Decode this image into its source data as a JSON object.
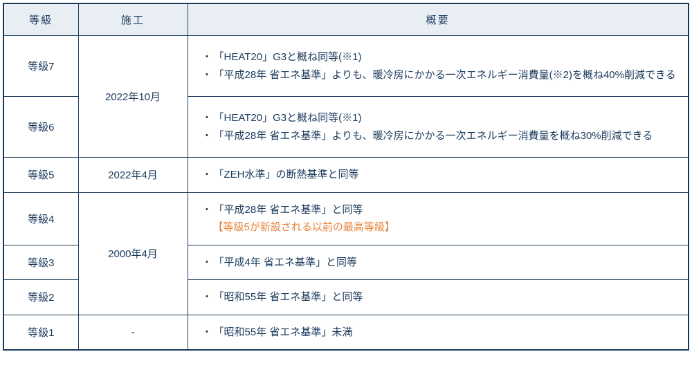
{
  "table": {
    "headers": {
      "grade": "等級",
      "construction": "施工",
      "summary": "概要"
    },
    "border_color": "#1a3a5c",
    "text_color": "#1a3a5c",
    "header_bg": "#e8eef4",
    "note_color": "#e8833a",
    "rows": {
      "r7": {
        "grade": "等級7",
        "bullets": [
          "「HEAT20」G3と概ね同等(※1)",
          "「平成28年 省エネ基準」よりも、暖冷房にかかる一次エネルギー消費量(※2)を概ね40%削減できる"
        ]
      },
      "r6": {
        "grade": "等級6",
        "bullets": [
          "「HEAT20」G3と概ね同等(※1)",
          "「平成28年 省エネ基準」よりも、暖冷房にかかる一次エネルギー消費量を概ね30%削減できる"
        ]
      },
      "r5": {
        "grade": "等級5",
        "date": "2022年4月",
        "bullets": [
          "「ZEH水準」の断熱基準と同等"
        ]
      },
      "r4": {
        "grade": "等級4",
        "bullets": [
          "「平成28年 省エネ基準」と同等"
        ],
        "note": "【等級5が新設される以前の最高等級】"
      },
      "r3": {
        "grade": "等級3",
        "bullets": [
          "「平成4年 省エネ基準」と同等"
        ]
      },
      "r2": {
        "grade": "等級2",
        "bullets": [
          "「昭和55年 省エネ基準」と同等"
        ]
      },
      "r1": {
        "grade": "等級1",
        "date": "-",
        "bullets": [
          "「昭和55年 省エネ基準」未満"
        ]
      },
      "date_2022_10": "2022年10月",
      "date_2000_04": "2000年4月"
    }
  }
}
